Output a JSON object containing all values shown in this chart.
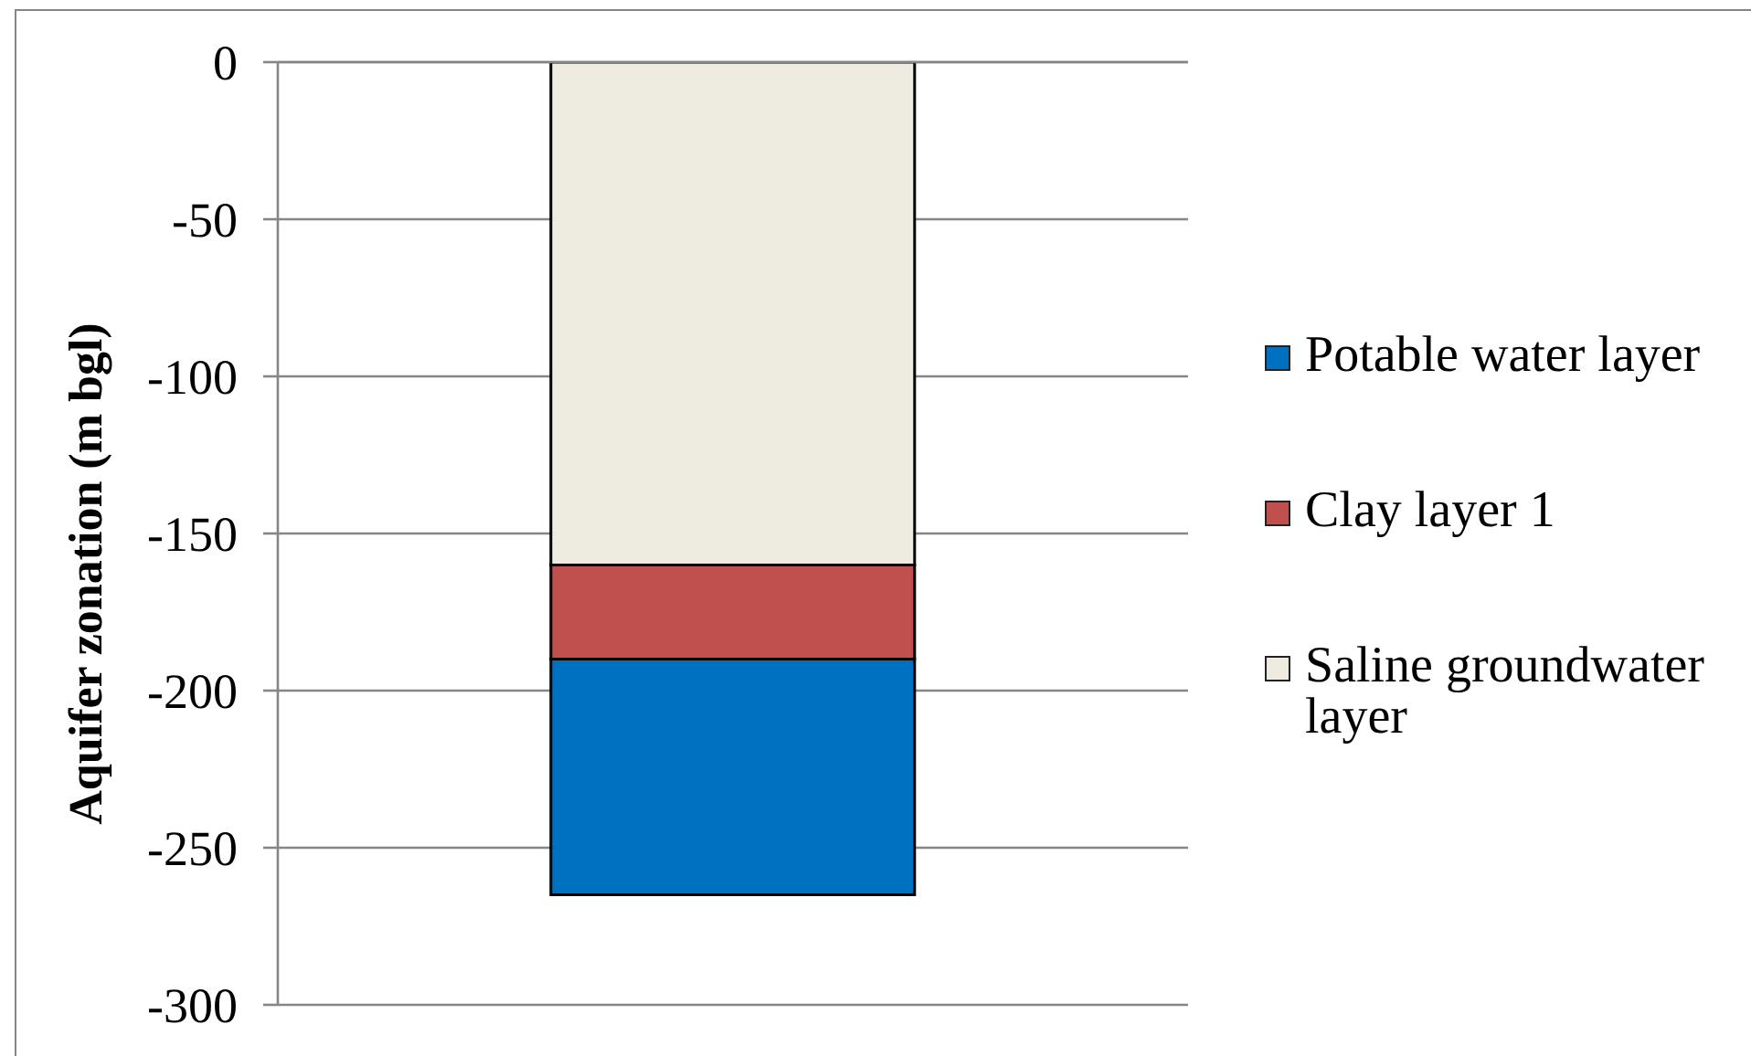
{
  "chart_data": {
    "type": "bar",
    "ylabel": "Aquifer zonation (m bgl)",
    "categories": [
      null
    ],
    "series": [
      {
        "name": "Saline groundwater layer",
        "color": "#eeece1",
        "values": [
          -160
        ]
      },
      {
        "name": "Clay layer 1",
        "color": "#c0504d",
        "values": [
          -30
        ]
      },
      {
        "name": "Potable water layer",
        "color": "#0070c0",
        "values": [
          -75
        ]
      }
    ],
    "stacked": true,
    "ylim": [
      -300,
      0
    ],
    "yticks": [
      -300,
      -250,
      -200,
      -150,
      -100,
      -50,
      0
    ],
    "grid": "y",
    "legend": "right",
    "tick_labels": "y"
  }
}
